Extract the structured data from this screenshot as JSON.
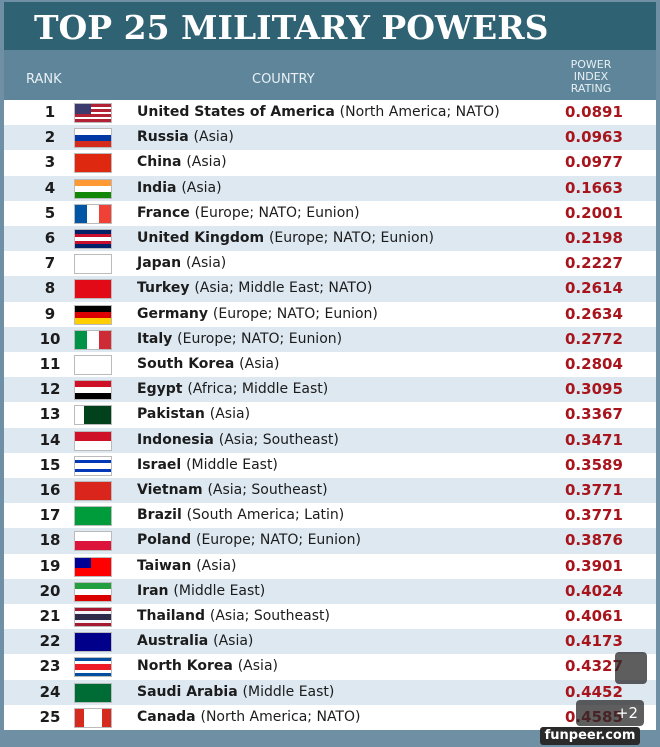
{
  "title": "TOP 25 MILITARY POWERS",
  "columns": [
    "RANK",
    "COUNTRY",
    "POWER INDEX RATING"
  ],
  "rows": [
    {
      "rank": 1,
      "country": "United States of America",
      "region": "(North America; NATO)",
      "rating": 0.0891
    },
    {
      "rank": 2,
      "country": "Russia",
      "region": "(Asia)",
      "rating": 0.0963
    },
    {
      "rank": 3,
      "country": "China",
      "region": "(Asia)",
      "rating": 0.0977
    },
    {
      "rank": 4,
      "country": "India",
      "region": "(Asia)",
      "rating": 0.1663
    },
    {
      "rank": 5,
      "country": "France",
      "region": "(Europe; NATO; Eunion)",
      "rating": 0.2001
    },
    {
      "rank": 6,
      "country": "United Kingdom",
      "region": "(Europe; NATO; Eunion)",
      "rating": 0.2198
    },
    {
      "rank": 7,
      "country": "Japan",
      "region": "(Asia)",
      "rating": 0.2227
    },
    {
      "rank": 8,
      "country": "Turkey",
      "region": "(Asia; Middle East; NATO)",
      "rating": 0.2614
    },
    {
      "rank": 9,
      "country": "Germany",
      "region": "(Europe; NATO; Eunion)",
      "rating": 0.2634
    },
    {
      "rank": 10,
      "country": "Italy",
      "region": "(Europe; NATO; Eunion)",
      "rating": 0.2772
    },
    {
      "rank": 11,
      "country": "South Korea",
      "region": "(Asia)",
      "rating": 0.2804
    },
    {
      "rank": 12,
      "country": "Egypt",
      "region": "(Africa; Middle East)",
      "rating": 0.3095
    },
    {
      "rank": 13,
      "country": "Pakistan",
      "region": "(Asia)",
      "rating": 0.3367
    },
    {
      "rank": 14,
      "country": "Indonesia",
      "region": "(Asia; Southeast)",
      "rating": 0.3471
    },
    {
      "rank": 15,
      "country": "Israel",
      "region": "(Middle East)",
      "rating": 0.3589
    },
    {
      "rank": 16,
      "country": "Vietnam",
      "region": "(Asia; Southeast)",
      "rating": 0.3771
    },
    {
      "rank": 17,
      "country": "Brazil",
      "region": "(South America; Latin)",
      "rating": 0.3771
    },
    {
      "rank": 18,
      "country": "Poland",
      "region": "(Europe; NATO; Eunion)",
      "rating": 0.3876
    },
    {
      "rank": 19,
      "country": "Taiwan",
      "region": "(Asia)",
      "rating": 0.3901
    },
    {
      "rank": 20,
      "country": "Iran",
      "region": "(Middle East)",
      "rating": 0.4024
    },
    {
      "rank": 21,
      "country": "Thailand",
      "region": "(Asia; Southeast)",
      "rating": 0.4061
    },
    {
      "rank": 22,
      "country": "Australia",
      "region": "(Asia)",
      "rating": 0.4173
    },
    {
      "rank": 23,
      "country": "North Korea",
      "region": "(Asia)",
      "rating": 0.4327
    },
    {
      "rank": 24,
      "country": "Saudi Arabia",
      "region": "(Middle East)",
      "rating": 0.4452
    },
    {
      "rank": 25,
      "country": "Canada",
      "region": "(North America; NATO)",
      "rating": 0.4585
    }
  ],
  "watermark": {
    "photos": "+2",
    "site": "funpeer.com"
  }
}
